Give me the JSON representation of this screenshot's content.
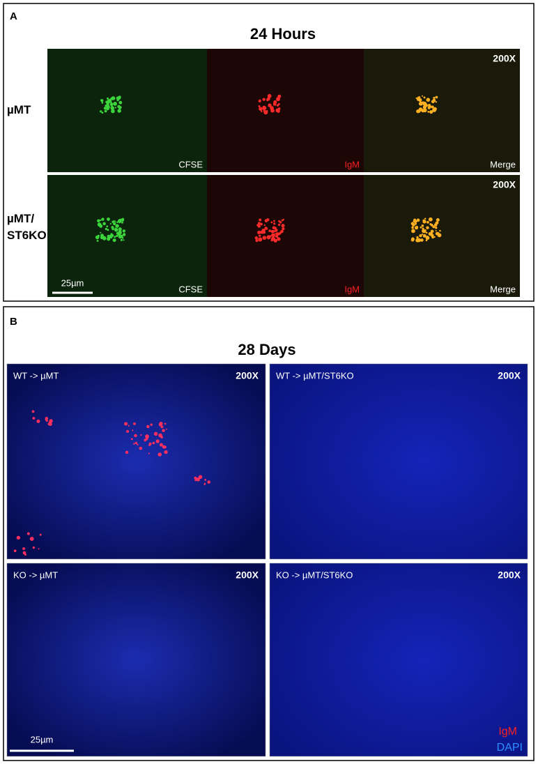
{
  "panel_a": {
    "label": "A",
    "title": "24 Hours",
    "rows": [
      {
        "label_lines": [
          "µMT"
        ],
        "magnification": "200X",
        "channels": [
          "CFSE",
          "IgM",
          "Merge"
        ]
      },
      {
        "label_lines": [
          "µMT/",
          "ST6KO"
        ],
        "magnification": "200X",
        "channels": [
          "CFSE",
          "IgM",
          "Merge"
        ]
      }
    ],
    "scale_bar": "25µm"
  },
  "panel_b": {
    "label": "B",
    "title": "28 Days",
    "images": [
      {
        "label": "WT -> µMT",
        "magnification": "200X"
      },
      {
        "label": "WT -> µMT/ST6KO",
        "magnification": "200X"
      },
      {
        "label": "KO -> µMT",
        "magnification": "200X"
      },
      {
        "label": "KO -> µMT/ST6KO",
        "magnification": "200X"
      }
    ],
    "legend": [
      "IgM",
      "DAPI"
    ],
    "scale_bar": "25µm"
  }
}
